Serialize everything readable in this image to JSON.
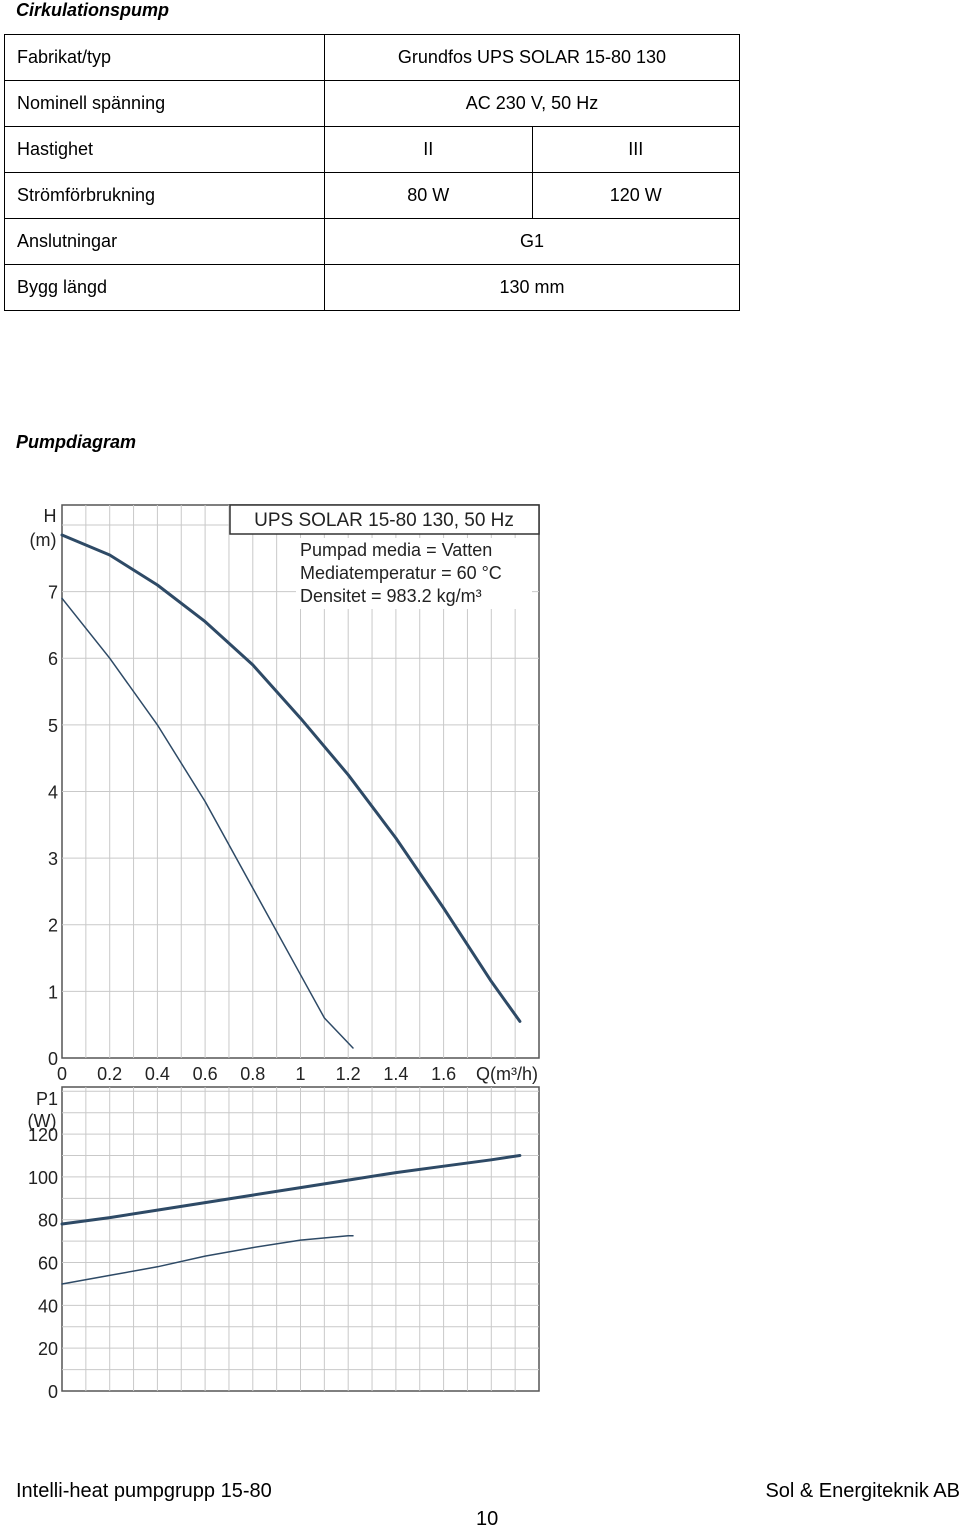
{
  "sections": {
    "pump_heading": "Cirkulationspump",
    "diagram_heading": "Pumpdiagram"
  },
  "spec_table": {
    "rows": [
      {
        "label": "Fabrikat/typ",
        "value": "Grundfos UPS SOLAR 15-80 130"
      },
      {
        "label": "Nominell spänning",
        "value": "AC 230 V, 50 Hz"
      },
      {
        "label": "Hastighet",
        "value_ii": "II",
        "value_iii": "III"
      },
      {
        "label": "Strömförbrukning",
        "value_ii": "80 W",
        "value_iii": "120 W"
      },
      {
        "label": "Anslutningar",
        "value": "G1"
      },
      {
        "label": "Bygg längd",
        "value": "130 mm"
      }
    ]
  },
  "chart_data": [
    {
      "type": "line",
      "title": "UPS SOLAR 15-80 130, 50 Hz",
      "annotations": [
        "Pumpad media = Vatten",
        "Mediatemperatur  = 60 °C",
        "Densitet = 983.2 kg/m³"
      ],
      "ylabel": [
        "H",
        "(m)"
      ],
      "xlabel": "Q(m³/h)",
      "xlim": [
        0,
        2.0
      ],
      "ylim": [
        0,
        8.3
      ],
      "x_ticks": [
        0,
        0.2,
        0.4,
        0.6,
        0.8,
        1,
        1.2,
        1.4,
        1.6
      ],
      "x_tick_labels": [
        "0",
        "0.2",
        "0.4",
        "0.6",
        "0.8",
        "1",
        "1.2",
        "1.4",
        "1.6"
      ],
      "y_ticks": [
        0,
        1,
        2,
        3,
        4,
        5,
        6,
        7
      ],
      "grid": true,
      "series": [
        {
          "x": [
            0,
            0.2,
            0.4,
            0.6,
            0.8,
            1.0,
            1.2,
            1.4,
            1.6,
            1.8,
            1.92
          ],
          "y": [
            7.85,
            7.55,
            7.1,
            6.55,
            5.9,
            5.1,
            4.25,
            3.3,
            2.25,
            1.15,
            0.55
          ]
        },
        {
          "x": [
            0,
            0.2,
            0.4,
            0.6,
            0.8,
            1.0,
            1.1,
            1.22
          ],
          "y": [
            6.9,
            6.0,
            5.0,
            3.85,
            2.55,
            1.25,
            0.6,
            0.15
          ]
        }
      ],
      "line_color": "#2e4a66"
    },
    {
      "type": "line",
      "ylabel": [
        "P1",
        "(W)"
      ],
      "xlim": [
        0,
        2.0
      ],
      "ylim": [
        0,
        142
      ],
      "y_ticks": [
        0,
        20,
        40,
        60,
        80,
        100,
        120
      ],
      "grid": true,
      "series": [
        {
          "x": [
            0,
            0.2,
            0.4,
            0.6,
            0.8,
            1.0,
            1.2,
            1.4,
            1.6,
            1.8,
            1.92
          ],
          "y": [
            78,
            81,
            84.5,
            88,
            91.5,
            95,
            98.5,
            102,
            105,
            108,
            110
          ]
        },
        {
          "x": [
            0,
            0.2,
            0.4,
            0.6,
            0.8,
            1.0,
            1.2,
            1.22
          ],
          "y": [
            50,
            54,
            58,
            63,
            67,
            70.5,
            72.5,
            72.5
          ]
        }
      ],
      "line_color": "#2e4a66"
    }
  ],
  "footer": {
    "left": "Intelli-heat pumpgrupp 15-80",
    "right": "Sol & Energiteknik AB",
    "page_number": "10"
  }
}
